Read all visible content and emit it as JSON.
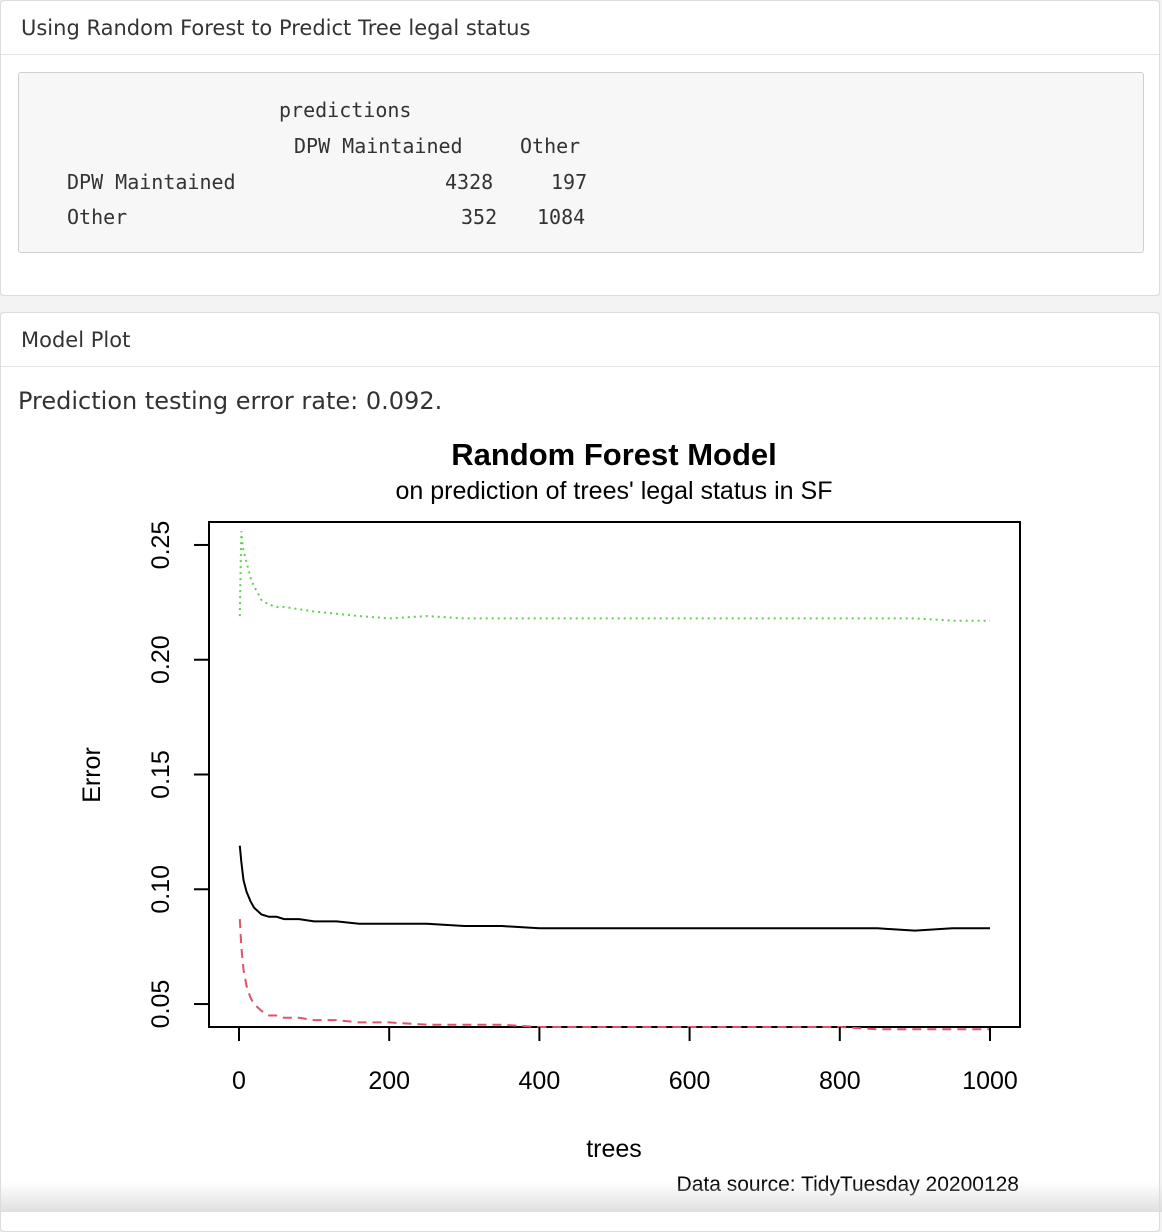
{
  "panel1": {
    "title": "Using Random Forest to Predict Tree legal status",
    "confusion": {
      "header_predictions": "predictions",
      "col1": "DPW Maintained",
      "col2": "Other",
      "rows": [
        {
          "label": "DPW Maintained",
          "v1": "4328",
          "v2": "197"
        },
        {
          "label": "Other",
          "v1": "352",
          "v2": "1084"
        }
      ]
    }
  },
  "panel2": {
    "title": "Model Plot",
    "error_text": "Prediction testing error rate: 0.092."
  },
  "chart_data": {
    "type": "line",
    "title": "Random Forest Model",
    "subtitle": "on prediction of trees' legal status in SF",
    "xlabel": "trees",
    "ylabel": "Error",
    "caption": "Data source: TidyTuesday 20200128",
    "xlim": [
      0,
      1000
    ],
    "ylim": [
      0.04,
      0.26
    ],
    "x_ticks": [
      0,
      200,
      400,
      600,
      800,
      1000
    ],
    "y_ticks": [
      0.05,
      0.1,
      0.15,
      0.2,
      0.25
    ],
    "y_tick_labels": [
      "0.05",
      "0.10",
      "0.15",
      "0.20",
      "0.25"
    ],
    "grid": false,
    "series": [
      {
        "color": "#000000",
        "dash": "solid",
        "x": [
          1,
          3,
          6,
          10,
          15,
          20,
          30,
          40,
          50,
          60,
          80,
          100,
          130,
          160,
          200,
          250,
          300,
          350,
          400,
          450,
          500,
          550,
          600,
          650,
          700,
          750,
          800,
          850,
          900,
          950,
          1000
        ],
        "y": [
          0.119,
          0.112,
          0.104,
          0.099,
          0.095,
          0.092,
          0.089,
          0.088,
          0.088,
          0.087,
          0.087,
          0.086,
          0.086,
          0.085,
          0.085,
          0.085,
          0.084,
          0.084,
          0.083,
          0.083,
          0.083,
          0.083,
          0.083,
          0.083,
          0.083,
          0.083,
          0.083,
          0.083,
          0.082,
          0.083,
          0.083
        ]
      },
      {
        "color": "#DF536B",
        "dash": "dashed",
        "x": [
          1,
          3,
          6,
          10,
          15,
          20,
          30,
          40,
          50,
          60,
          80,
          100,
          130,
          160,
          200,
          250,
          300,
          350,
          400,
          450,
          500,
          550,
          600,
          650,
          700,
          750,
          800,
          850,
          900,
          950,
          1000
        ],
        "y": [
          0.087,
          0.075,
          0.065,
          0.058,
          0.053,
          0.05,
          0.047,
          0.045,
          0.045,
          0.044,
          0.044,
          0.043,
          0.043,
          0.042,
          0.042,
          0.041,
          0.041,
          0.041,
          0.04,
          0.04,
          0.04,
          0.04,
          0.04,
          0.04,
          0.04,
          0.04,
          0.04,
          0.039,
          0.039,
          0.039,
          0.039
        ]
      },
      {
        "color": "#61D04F",
        "dash": "dotted",
        "x": [
          1,
          3,
          5,
          8,
          12,
          16,
          20,
          25,
          30,
          40,
          50,
          60,
          80,
          100,
          130,
          160,
          200,
          250,
          300,
          350,
          400,
          450,
          500,
          550,
          600,
          650,
          700,
          750,
          800,
          850,
          900,
          950,
          1000
        ],
        "y": [
          0.219,
          0.256,
          0.249,
          0.245,
          0.24,
          0.235,
          0.232,
          0.229,
          0.226,
          0.224,
          0.223,
          0.223,
          0.222,
          0.221,
          0.22,
          0.219,
          0.218,
          0.219,
          0.218,
          0.218,
          0.218,
          0.218,
          0.218,
          0.218,
          0.218,
          0.218,
          0.218,
          0.218,
          0.218,
          0.218,
          0.218,
          0.217,
          0.217
        ]
      }
    ]
  }
}
